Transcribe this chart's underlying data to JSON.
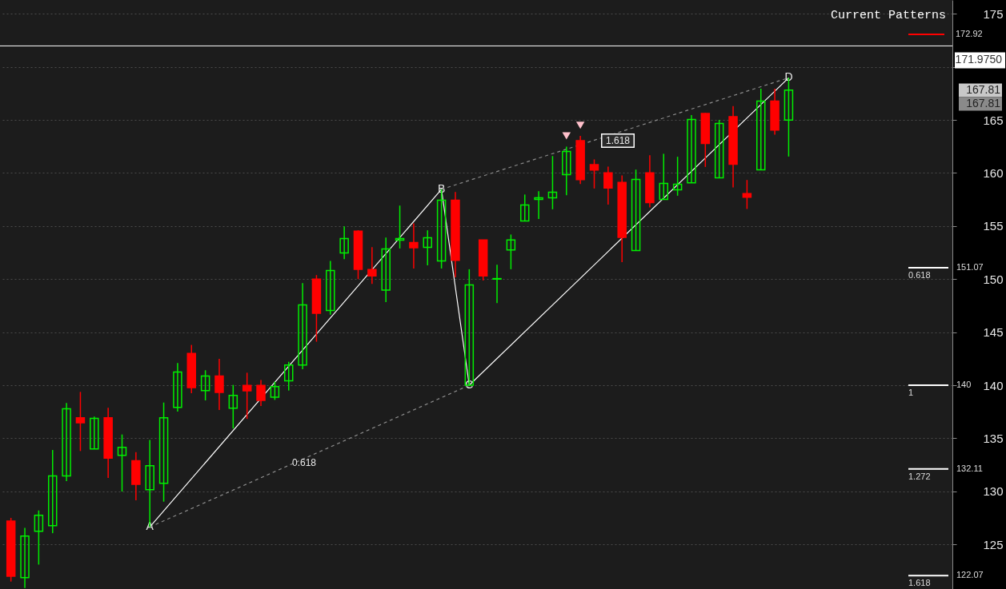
{
  "chart_data": {
    "type": "candlestick",
    "categories": [
      null,
      null,
      null,
      null,
      null,
      null,
      null,
      null,
      null,
      null,
      null,
      null,
      null,
      null,
      null,
      null,
      null,
      null,
      null,
      null,
      null,
      null,
      null,
      null,
      null,
      null,
      null,
      null,
      null,
      null,
      null,
      null,
      null,
      null,
      null,
      null,
      null,
      null,
      null,
      null,
      null,
      null,
      null,
      null,
      null,
      null,
      null,
      null,
      null,
      null,
      null,
      null,
      null,
      null,
      null,
      null,
      null,
      null,
      null,
      null,
      null,
      null,
      null,
      null,
      null,
      null,
      null,
      null
    ],
    "ohlc": [
      [
        127.2,
        127.5,
        121.5,
        122.0
      ],
      [
        121.87,
        126.56,
        120.9,
        125.79
      ],
      [
        126.24,
        128.2,
        123.1,
        127.75
      ],
      [
        126.77,
        133.9,
        126.06,
        131.46
      ],
      [
        131.46,
        138.32,
        130.96,
        137.79
      ],
      [
        136.94,
        139.37,
        133.8,
        136.46
      ],
      [
        134.0,
        137.04,
        134.0,
        136.87
      ],
      [
        136.94,
        137.87,
        131.26,
        133.14
      ],
      [
        133.4,
        135.36,
        129.98,
        134.15
      ],
      [
        132.89,
        133.7,
        129.15,
        130.66
      ],
      [
        130.16,
        134.85,
        126.64,
        132.42
      ],
      [
        130.76,
        138.37,
        129.03,
        136.94
      ],
      [
        137.92,
        142.09,
        137.51,
        141.24
      ],
      [
        142.99,
        143.8,
        139.25,
        139.77
      ],
      [
        139.5,
        141.41,
        138.57,
        140.86
      ],
      [
        140.86,
        142.49,
        137.66,
        139.32
      ],
      [
        137.84,
        140.03,
        135.93,
        139.05
      ],
      [
        139.98,
        141.18,
        136.83,
        139.47
      ],
      [
        139.98,
        140.5,
        138.04,
        138.57
      ],
      [
        138.87,
        140.33,
        138.62,
        139.88
      ],
      [
        140.41,
        142.21,
        139.5,
        141.91
      ],
      [
        141.91,
        149.62,
        141.51,
        147.57
      ],
      [
        150.0,
        150.38,
        144.1,
        146.78
      ],
      [
        147.04,
        151.71,
        146.65,
        150.81
      ],
      [
        152.46,
        154.97,
        151.88,
        153.82
      ],
      [
        154.52,
        154.6,
        150.0,
        150.93
      ],
      [
        150.9,
        153.01,
        149.55,
        150.3
      ],
      [
        148.97,
        153.92,
        147.84,
        152.84
      ],
      [
        153.67,
        156.93,
        152.89,
        153.82
      ],
      [
        153.44,
        155.25,
        151.0,
        152.96
      ],
      [
        152.99,
        154.6,
        151.3,
        153.9
      ],
      [
        151.71,
        158.46,
        151.0,
        157.44
      ],
      [
        157.44,
        158.21,
        150.17,
        151.76
      ],
      [
        140.0,
        150.93,
        140.0,
        149.45
      ],
      [
        153.69,
        153.69,
        149.87,
        150.3
      ],
      [
        150.0,
        151.36,
        147.74,
        150.05
      ],
      [
        152.74,
        154.2,
        150.93,
        153.69
      ],
      [
        155.48,
        157.97,
        155.48,
        156.99
      ],
      [
        157.51,
        158.29,
        155.67,
        157.66
      ],
      [
        157.66,
        161.6,
        156.58,
        158.19
      ],
      [
        159.85,
        162.49,
        157.91,
        162.03
      ],
      [
        163.04,
        163.49,
        158.97,
        159.37
      ],
      [
        160.78,
        161.28,
        158.54,
        160.27
      ],
      [
        160.02,
        160.6,
        157.03,
        158.59
      ],
      [
        159.12,
        159.77,
        151.6,
        153.94
      ],
      [
        152.69,
        160.32,
        152.69,
        159.4
      ],
      [
        160.02,
        161.68,
        156.76,
        157.21
      ],
      [
        157.51,
        161.81,
        157.51,
        159.02
      ],
      [
        158.42,
        161.53,
        157.86,
        158.94
      ],
      [
        159.08,
        165.45,
        159.08,
        165.05
      ],
      [
        165.6,
        165.65,
        160.57,
        162.79
      ],
      [
        159.55,
        165.0,
        159.55,
        164.67
      ],
      [
        165.3,
        166.3,
        158.64,
        160.83
      ],
      [
        158.06,
        159.34,
        156.61,
        157.71
      ],
      [
        160.3,
        167.94,
        160.3,
        166.78
      ],
      [
        166.78,
        167.94,
        163.62,
        164.04
      ],
      [
        164.99,
        168.97,
        161.55,
        167.81
      ],
      null,
      null,
      null,
      null,
      null,
      null,
      null,
      null,
      null,
      null,
      null
    ],
    "colors": [
      "#ff0000",
      "#00ee00",
      "#00ee00",
      "#00ee00",
      "#00ee00",
      "#ff0000",
      "#00ee00",
      "#ff0000",
      "#00ee00",
      "#ff0000",
      "#00ee00",
      "#00ee00",
      "#00ee00",
      "#ff0000",
      "#00ee00",
      "#ff0000",
      "#00ee00",
      "#ff0000",
      "#ff0000",
      "#00ee00",
      "#00ee00",
      "#00ee00",
      "#ff0000",
      "#00ee00",
      "#00ee00",
      "#ff0000",
      "#ff0000",
      "#00ee00",
      "#00ee00",
      "#ff0000",
      "#00ee00",
      "#00ee00",
      "#ff0000",
      "#00ee00",
      "#ff0000",
      "#00ee00",
      "#00ee00",
      "#00ee00",
      "#00ee00",
      "#00ee00",
      "#00ee00",
      "#ff0000",
      "#ff0000",
      "#ff0000",
      "#ff0000",
      "#00ee00",
      "#ff0000",
      "#00ee00",
      "#00ee00",
      "#00ee00",
      "#ff0000",
      "#00ee00",
      "#ff0000",
      "#ff0000",
      "#00ee00",
      "#ff0000",
      "#00ee00",
      null,
      null,
      null,
      null,
      null,
      null,
      null,
      null,
      null,
      null,
      null
    ],
    "series": [
      {
        "type": "line",
        "color": "#ffffff",
        "line_style": "solid",
        "values": [
          null,
          null,
          null,
          null,
          null,
          null,
          null,
          null,
          null,
          null,
          126.64,
          null,
          null,
          null,
          null,
          null,
          null,
          null,
          null,
          null,
          null,
          null,
          null,
          null,
          null,
          null,
          null,
          null,
          null,
          null,
          null,
          158.46,
          null,
          140.0,
          null,
          null,
          null,
          null,
          null,
          null,
          null,
          null,
          null,
          null,
          null,
          null,
          null,
          null,
          null,
          null,
          null,
          null,
          null,
          null,
          null,
          null,
          168.97,
          null,
          null,
          null,
          null,
          null,
          null,
          null,
          null,
          null,
          null,
          null
        ],
        "value_labels": [
          null,
          null,
          null,
          null,
          null,
          null,
          null,
          null,
          null,
          null,
          "A",
          null,
          null,
          null,
          null,
          null,
          null,
          null,
          null,
          null,
          null,
          null,
          null,
          null,
          null,
          null,
          null,
          null,
          null,
          null,
          null,
          "B",
          null,
          "C",
          null,
          null,
          null,
          null,
          null,
          null,
          null,
          null,
          null,
          null,
          null,
          null,
          null,
          null,
          null,
          null,
          null,
          null,
          null,
          null,
          null,
          null,
          "D",
          null,
          null,
          null,
          null,
          null,
          null,
          null,
          null,
          null,
          null,
          null
        ]
      },
      {
        "type": "line",
        "color": "#8c8c8c",
        "line_style": "dashed",
        "values": [
          null,
          null,
          null,
          null,
          null,
          null,
          null,
          null,
          null,
          null,
          126.64,
          null,
          null,
          null,
          null,
          null,
          null,
          null,
          null,
          null,
          null,
          null,
          null,
          null,
          null,
          null,
          null,
          null,
          null,
          null,
          null,
          null,
          null,
          140.0,
          null,
          null,
          null,
          null,
          null,
          null,
          null,
          null,
          null,
          null,
          null,
          null,
          null,
          null,
          null,
          null,
          null,
          null,
          null,
          null,
          null,
          null,
          null,
          null,
          null,
          null,
          null,
          null,
          null,
          null,
          null,
          null,
          null,
          null
        ]
      },
      {
        "type": "line",
        "color": "#8c8c8c",
        "line_style": "dashed",
        "values": [
          null,
          null,
          null,
          null,
          null,
          null,
          null,
          null,
          null,
          null,
          null,
          null,
          null,
          null,
          null,
          null,
          null,
          null,
          null,
          null,
          null,
          null,
          null,
          null,
          null,
          null,
          null,
          null,
          null,
          null,
          null,
          158.46,
          null,
          null,
          null,
          null,
          null,
          null,
          null,
          null,
          null,
          null,
          null,
          null,
          null,
          null,
          null,
          null,
          null,
          null,
          null,
          null,
          null,
          null,
          null,
          null,
          168.97,
          null,
          null,
          null,
          null,
          null,
          null,
          null,
          null,
          null,
          null,
          null
        ]
      },
      {
        "type": "scatter",
        "color": "#ffc0cb",
        "marker": "triangle",
        "values": [
          null,
          null,
          null,
          null,
          null,
          null,
          null,
          null,
          null,
          null,
          null,
          null,
          null,
          null,
          null,
          null,
          null,
          null,
          null,
          null,
          null,
          null,
          null,
          null,
          null,
          null,
          null,
          null,
          null,
          null,
          null,
          null,
          null,
          null,
          null,
          null,
          null,
          null,
          null,
          null,
          163.5,
          164.5,
          null,
          null,
          null,
          null,
          null,
          null,
          null,
          null,
          null,
          null,
          null,
          null,
          null,
          null,
          null,
          null,
          null,
          null,
          null,
          null,
          null,
          null,
          null,
          null,
          null,
          null
        ]
      }
    ],
    "ylim": [
      120.8,
      176.3
    ],
    "yticks": [
      125,
      130,
      135,
      140,
      145,
      150,
      155,
      160,
      165,
      {
        "value": 170,
        "label": null
      },
      175
    ],
    "grid": "y",
    "tick_labels": "y",
    "ref_lines": [
      {
        "axis": "y",
        "value": 171.975,
        "label": "171.9750",
        "color": "#ffffff",
        "line_style": "solid"
      },
      {
        "axis": "y",
        "value": 151.07,
        "label": "151.07",
        "color": "#ffffff"
      },
      {
        "axis": "y",
        "value": 140,
        "label": "140",
        "color": "#ffffff"
      },
      {
        "axis": "y",
        "value": 132.11,
        "label": "132.11",
        "color": "#ffffff"
      },
      {
        "axis": "y",
        "value": 122.07,
        "label": "122.07",
        "color": "#ffffff"
      }
    ],
    "annotations": [
      "Current Patterns",
      "172.92",
      "0.618",
      "1.618",
      "167.81",
      "167.81",
      {
        "text": "0.618",
        "y": 151.07
      },
      {
        "text": "1",
        "y": 140
      },
      {
        "text": "1.272",
        "y": 132.11
      },
      {
        "text": "1.618",
        "y": 122.07
      }
    ]
  }
}
